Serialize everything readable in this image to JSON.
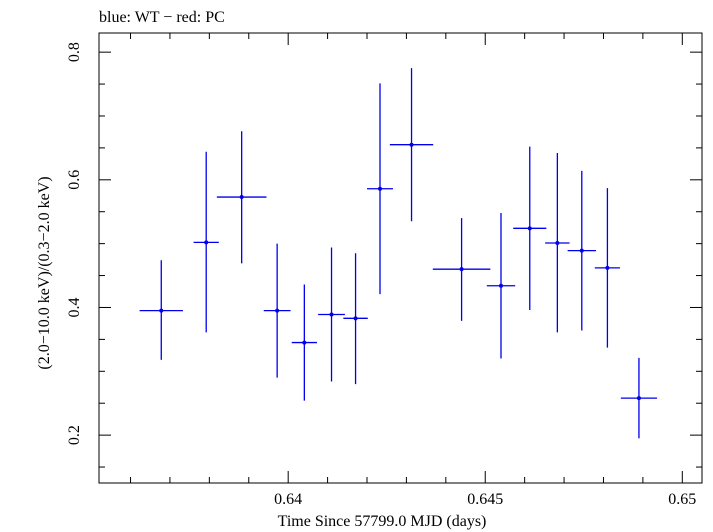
{
  "chart_data": {
    "type": "scatter",
    "title": "blue: WT − red: PC",
    "xlabel": "Time Since 57799.0 MJD (days)",
    "ylabel": "(2.0−10.0 keV)/(0.3−2.0 keV)",
    "xlim": [
      0.6352,
      0.6505
    ],
    "ylim": [
      0.125,
      0.83
    ],
    "x_ticks": [
      {
        "value": 0.64,
        "label": "0.64"
      },
      {
        "value": 0.645,
        "label": "0.645"
      },
      {
        "value": 0.65,
        "label": "0.65"
      }
    ],
    "y_ticks": [
      {
        "value": 0.2,
        "label": "0.2"
      },
      {
        "value": 0.4,
        "label": "0.4"
      },
      {
        "value": 0.6,
        "label": "0.6"
      },
      {
        "value": 0.8,
        "label": "0.8"
      }
    ],
    "grid": false,
    "series": [
      {
        "color": "#0000ee",
        "points": [
          {
            "x": 0.63678,
            "xerr": 0.00055,
            "y": 0.395,
            "ylo": 0.318,
            "yhi": 0.474
          },
          {
            "x": 0.63792,
            "xerr": 0.00032,
            "y": 0.502,
            "ylo": 0.361,
            "yhi": 0.644
          },
          {
            "x": 0.63882,
            "xerr": 0.00063,
            "y": 0.573,
            "ylo": 0.469,
            "yhi": 0.676
          },
          {
            "x": 0.63972,
            "xerr": 0.00034,
            "y": 0.395,
            "ylo": 0.29,
            "yhi": 0.5
          },
          {
            "x": 0.64041,
            "xerr": 0.00032,
            "y": 0.345,
            "ylo": 0.254,
            "yhi": 0.436
          },
          {
            "x": 0.6411,
            "xerr": 0.00034,
            "y": 0.389,
            "ylo": 0.284,
            "yhi": 0.494
          },
          {
            "x": 0.64171,
            "xerr": 0.00031,
            "y": 0.383,
            "ylo": 0.28,
            "yhi": 0.485
          },
          {
            "x": 0.64233,
            "xerr": 0.00033,
            "y": 0.586,
            "ylo": 0.421,
            "yhi": 0.751
          },
          {
            "x": 0.64313,
            "xerr": 0.00055,
            "y": 0.655,
            "ylo": 0.535,
            "yhi": 0.775
          },
          {
            "x": 0.6444,
            "xerr": 0.00073,
            "y": 0.46,
            "ylo": 0.379,
            "yhi": 0.54
          },
          {
            "x": 0.6454,
            "xerr": 0.00036,
            "y": 0.434,
            "ylo": 0.32,
            "yhi": 0.548
          },
          {
            "x": 0.64613,
            "xerr": 0.00042,
            "y": 0.524,
            "ylo": 0.396,
            "yhi": 0.652
          },
          {
            "x": 0.64683,
            "xerr": 0.00031,
            "y": 0.501,
            "ylo": 0.361,
            "yhi": 0.642
          },
          {
            "x": 0.64745,
            "xerr": 0.00036,
            "y": 0.489,
            "ylo": 0.364,
            "yhi": 0.614
          },
          {
            "x": 0.6481,
            "xerr": 0.00032,
            "y": 0.462,
            "ylo": 0.337,
            "yhi": 0.587
          },
          {
            "x": 0.6489,
            "xerr": 0.00046,
            "y": 0.258,
            "ylo": 0.195,
            "yhi": 0.321
          }
        ]
      }
    ]
  }
}
